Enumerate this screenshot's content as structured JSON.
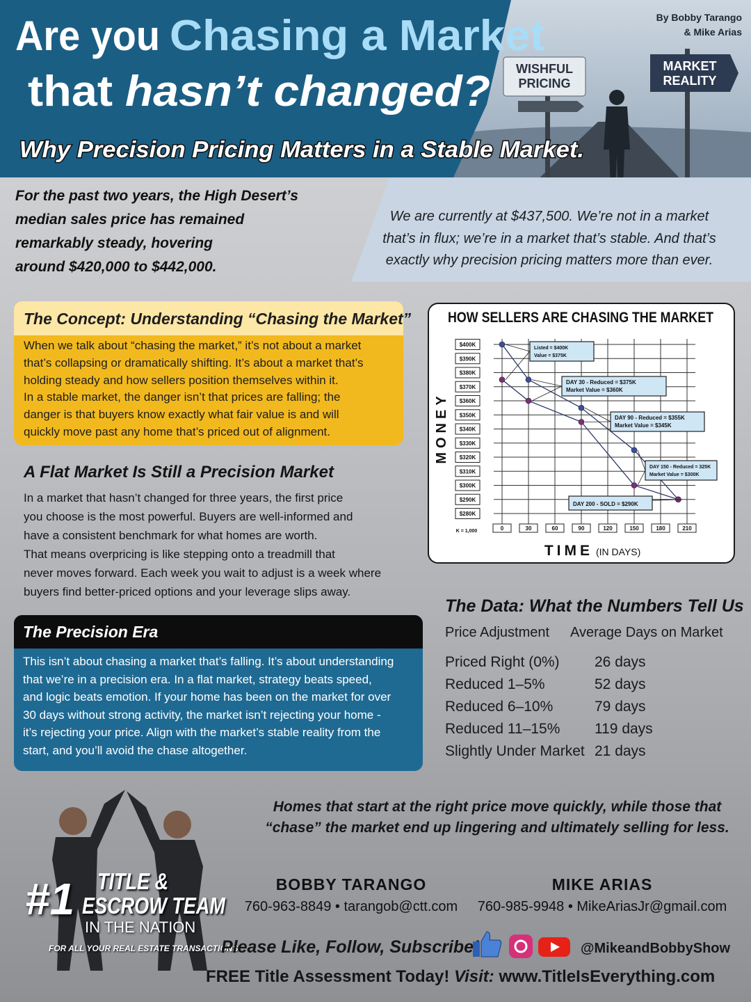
{
  "header": {
    "title_1": "Are you",
    "title_2": "Chasing a Market",
    "title_3": "that",
    "title_4": "hasn’t changed?",
    "subtitle": "Why Precision Pricing Matters in a Stable Market.",
    "byline": [
      "By Bobby Tarango",
      "& Mike Arias"
    ],
    "sign_left": [
      "WISHFUL",
      "PRICING"
    ],
    "sign_right": [
      "MARKET",
      "REALITY"
    ]
  },
  "intro": {
    "left": [
      "For the past two years, the High Desert’s",
      "median sales price has remained",
      "remarkably steady, hovering",
      "around $420,000 to $442,000."
    ],
    "right": [
      "We are currently at $437,500. We’re not in a market",
      "that’s in flux; we’re in a market that’s stable. And that’s",
      "exactly why precision pricing matters more than ever."
    ]
  },
  "concept": {
    "heading": "The Concept: Understanding “Chasing the Market”",
    "body": [
      "When we talk about “chasing the market,” it’s not about a market",
      "that’s collapsing or dramatically shifting. It’s about a market that’s",
      "holding steady and how sellers position themselves within it.",
      "In a stable market, the danger isn’t that prices are falling; the",
      "danger is that buyers know exactly what fair value is and will",
      "quickly move past any home that’s priced out of alignment."
    ]
  },
  "flat": {
    "heading": "A Flat Market Is Still a Precision Market",
    "body": [
      "In a market that hasn’t changed for three years, the first price",
      "you choose is the most powerful. Buyers are well-informed and",
      "have a consistent benchmark for what homes are worth.",
      "That means overpricing is like stepping onto a treadmill that",
      "never moves forward. Each week you wait to adjust is a week where",
      "buyers find better-priced options and your leverage slips away."
    ]
  },
  "era": {
    "heading": "The Precision Era",
    "body": [
      "This isn’t about chasing a market that’s falling. It’s about understanding",
      "that we’re in a precision era. In a flat market, strategy beats speed,",
      "and logic beats emotion. If your home has been on the market for over",
      "30 days without strong activity, the market isn’t rejecting your home -",
      "it’s rejecting your price. Align with the market’s stable reality from the",
      "start, and you’ll avoid the chase altogether."
    ]
  },
  "data_table": {
    "heading": "The Data: What the Numbers Tell Us",
    "columns": [
      "Price Adjustment",
      "Average Days on Market"
    ],
    "rows": [
      [
        "Priced Right (0%)",
        "26 days"
      ],
      [
        "Reduced 1–5%",
        "52 days"
      ],
      [
        "Reduced 6–10%",
        "79 days"
      ],
      [
        "Reduced 11–15%",
        "119 days"
      ],
      [
        "Slightly Under Market",
        "21 days"
      ]
    ]
  },
  "closing": [
    "Homes that start at the right price move quickly, while those that",
    "“chase” the market end up lingering and ultimately selling for less."
  ],
  "contacts": [
    {
      "name": "BOBBY TARANGO",
      "line": "760-963-8849 • tarangob@ctt.com"
    },
    {
      "name": "MIKE ARIAS",
      "line": "760-985-9948 • MikeAriasJr@gmail.com"
    }
  ],
  "badge": {
    "number": "#1",
    "lines": [
      "TITLE &",
      "ESCROW TEAM"
    ],
    "nation": "IN THE NATION",
    "tagline": "FOR ALL YOUR REAL ESTATE TRANSACTIONS"
  },
  "social": {
    "cta": "Please Like, Follow, Subscribe!",
    "handle": "@MikeandBobbyShow"
  },
  "footer": {
    "lead": "FREE Title Assessment Today!",
    "visit": "Visit:",
    "url": "www.TitleIsEverything.com"
  },
  "chart_data": {
    "type": "line",
    "title": "HOW SELLERS ARE CHASING THE MARKET",
    "y_label": "MONEY",
    "x_label": "TIME",
    "x_label_note": "(IN DAYS)",
    "unit_note": "K = 1,000",
    "x": [
      0,
      30,
      90,
      150,
      200
    ],
    "series": [
      {
        "name": "Listed",
        "color": "#3b4fa0",
        "values": [
          400,
          375,
          355,
          325,
          290
        ]
      },
      {
        "name": "Market Value",
        "color": "#7b2f78",
        "values": [
          375,
          360,
          345,
          300,
          290
        ]
      }
    ],
    "annotations": [
      {
        "lines": [
          "Listed = $400K",
          "Value = $375K"
        ]
      },
      {
        "lines": [
          "DAY 30 - Reduced = $375K",
          "Market Value = $360K"
        ]
      },
      {
        "lines": [
          "DAY 90 - Reduced = $355K",
          "Market Value = $345K"
        ]
      },
      {
        "lines": [
          "DAY 150 - Reduced = 325K",
          "Market Value = $300K"
        ]
      },
      {
        "lines": [
          "DAY 200 - SOLD = $290K"
        ]
      }
    ],
    "xlim": [
      0,
      210
    ],
    "xticks": [
      0,
      30,
      60,
      90,
      120,
      150,
      180,
      210
    ],
    "ylim": [
      280,
      400
    ],
    "yticks": [
      {
        "value": 280,
        "label": "$280K"
      },
      {
        "value": 290,
        "label": "$290K"
      },
      {
        "value": 300,
        "label": "$300K"
      },
      {
        "value": 310,
        "label": "$310K"
      },
      {
        "value": 320,
        "label": "$320K"
      },
      {
        "value": 330,
        "label": "$330K"
      },
      {
        "value": 340,
        "label": "$340K"
      },
      {
        "value": 350,
        "label": "$350K"
      },
      {
        "value": 360,
        "label": "$360K"
      },
      {
        "value": 370,
        "label": "$370K"
      },
      {
        "value": 380,
        "label": "$380K"
      },
      {
        "value": 390,
        "label": "$390K"
      },
      {
        "value": 400,
        "label": "$400K"
      }
    ],
    "grid": true
  }
}
